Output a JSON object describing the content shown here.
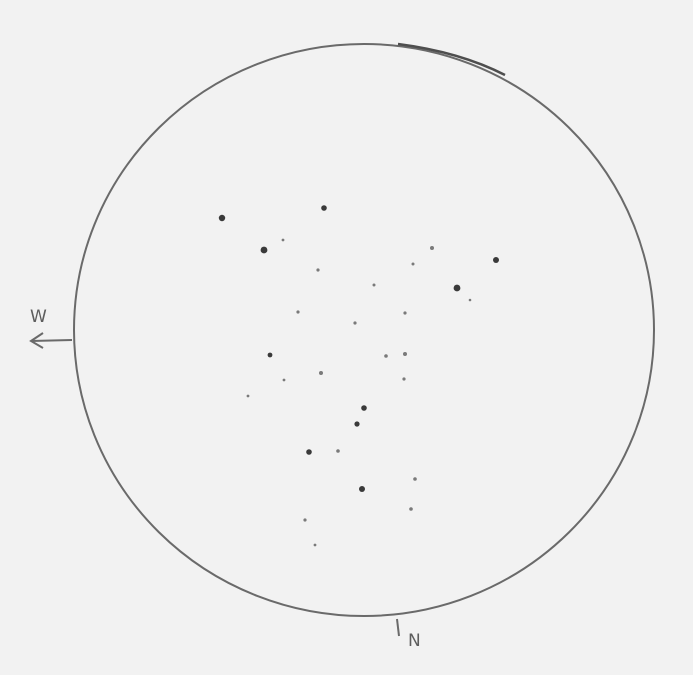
{
  "sketch": {
    "west_label": "W",
    "north_label": "N"
  },
  "colors": {
    "paper": "#f2f2f2",
    "pencil": "#5e5e5e",
    "star": "#3a3a3a"
  }
}
